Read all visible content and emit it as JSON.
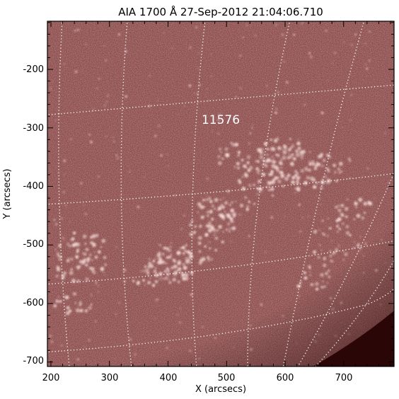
{
  "figure": {
    "title": "AIA 1700 Å 27-Sep-2012 21:04:06.710",
    "x_axis_label": "X (arcsecs)",
    "y_axis_label": "Y (arcsecs)",
    "x_ticks": [
      "200",
      "300",
      "400",
      "500",
      "600",
      "700"
    ],
    "y_ticks": [
      "-200",
      "-300",
      "-400",
      "-500",
      "-600",
      "-700"
    ],
    "region_label": "11576",
    "colors": {
      "disk_base": "#8c4e4e",
      "plage": "#f2d8d4",
      "off_limb": "#2a0606",
      "grid": "#ffffff",
      "axes": "#000000"
    }
  }
}
